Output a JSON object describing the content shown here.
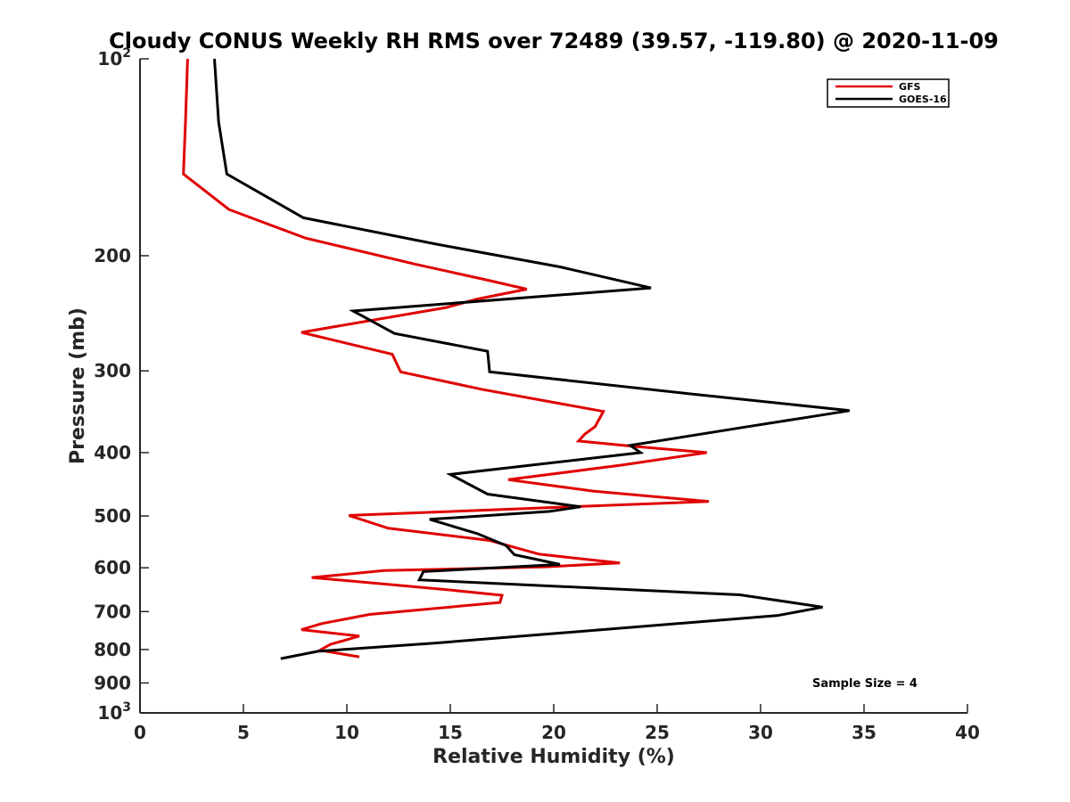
{
  "chart_data": {
    "type": "line",
    "title": "Cloudy CONUS Weekly RH RMS over 72489 (39.57, -119.80) @ 2020-11-09",
    "xlabel": "Relative Humidity (%)",
    "ylabel": "Pressure (mb)",
    "xlim": [
      0,
      40
    ],
    "ylim": [
      100,
      1000
    ],
    "yscale": "log",
    "y_reversed": true,
    "grid": false,
    "legend_position": "top-right",
    "x_ticks": [
      "0",
      "5",
      "10",
      "15",
      "20",
      "25",
      "30",
      "35",
      "40"
    ],
    "y_ticks": [
      {
        "value": 100,
        "base": "10",
        "exp": "2"
      },
      {
        "value": 200,
        "label": "200"
      },
      {
        "value": 300,
        "label": "300"
      },
      {
        "value": 400,
        "label": "400"
      },
      {
        "value": 500,
        "label": "500"
      },
      {
        "value": 600,
        "label": "600"
      },
      {
        "value": 700,
        "label": "700"
      },
      {
        "value": 800,
        "label": "800"
      },
      {
        "value": 900,
        "label": "900"
      },
      {
        "value": 1000,
        "base": "10",
        "exp": "3"
      }
    ],
    "annotation": "Sample Size = 4",
    "series": [
      {
        "name": "GFS",
        "color": "#e00000",
        "points": [
          [
            2.3,
            100
          ],
          [
            2.2,
            125
          ],
          [
            2.1,
            150
          ],
          [
            4.3,
            170
          ],
          [
            8,
            188
          ],
          [
            13.3,
            206
          ],
          [
            16.8,
            218
          ],
          [
            18.7,
            225
          ],
          [
            16.3,
            233
          ],
          [
            14.8,
            240
          ],
          [
            7.8,
            262
          ],
          [
            12.2,
            283
          ],
          [
            12.6,
            301
          ],
          [
            16.5,
            320
          ],
          [
            22.4,
            346
          ],
          [
            22,
            365
          ],
          [
            21.5,
            375
          ],
          [
            21.2,
            384
          ],
          [
            23.8,
            391
          ],
          [
            27.4,
            400
          ],
          [
            23.3,
            418
          ],
          [
            17.8,
            440
          ],
          [
            21.9,
            458
          ],
          [
            27.5,
            475
          ],
          [
            10.1,
            499
          ],
          [
            12,
            522
          ],
          [
            16.9,
            545
          ],
          [
            19.3,
            572
          ],
          [
            23.2,
            590
          ],
          [
            19.6,
            598
          ],
          [
            11.8,
            606
          ],
          [
            8.3,
            621
          ],
          [
            14.6,
            647
          ],
          [
            17.5,
            661
          ],
          [
            17.4,
            678
          ],
          [
            11.1,
            707
          ],
          [
            8.8,
            730
          ],
          [
            7.8,
            746
          ],
          [
            10.6,
            763
          ],
          [
            9.2,
            786
          ],
          [
            8.7,
            802
          ],
          [
            10.6,
            821
          ]
        ]
      },
      {
        "name": "GOES-16",
        "color": "#000000",
        "points": [
          [
            3.6,
            100
          ],
          [
            3.8,
            125
          ],
          [
            4.2,
            150
          ],
          [
            7.9,
            175
          ],
          [
            14.3,
            192
          ],
          [
            20.3,
            208
          ],
          [
            24.7,
            224
          ],
          [
            10.3,
            243
          ],
          [
            12.3,
            263
          ],
          [
            16.8,
            280
          ],
          [
            16.9,
            301
          ],
          [
            26.5,
            325
          ],
          [
            34.3,
            345
          ],
          [
            29.4,
            365
          ],
          [
            23.7,
            390
          ],
          [
            24.2,
            400
          ],
          [
            15,
            432
          ],
          [
            16.8,
            463
          ],
          [
            21.3,
            484
          ],
          [
            19.8,
            492
          ],
          [
            14,
            506
          ],
          [
            16.3,
            532
          ],
          [
            17.7,
            555
          ],
          [
            18.1,
            573
          ],
          [
            20.3,
            593
          ],
          [
            13.7,
            608
          ],
          [
            13.5,
            626
          ],
          [
            29,
            660
          ],
          [
            33,
            689
          ],
          [
            30.8,
            710
          ],
          [
            14.3,
            782
          ],
          [
            8.6,
            805
          ],
          [
            6.8,
            826
          ]
        ]
      }
    ]
  }
}
